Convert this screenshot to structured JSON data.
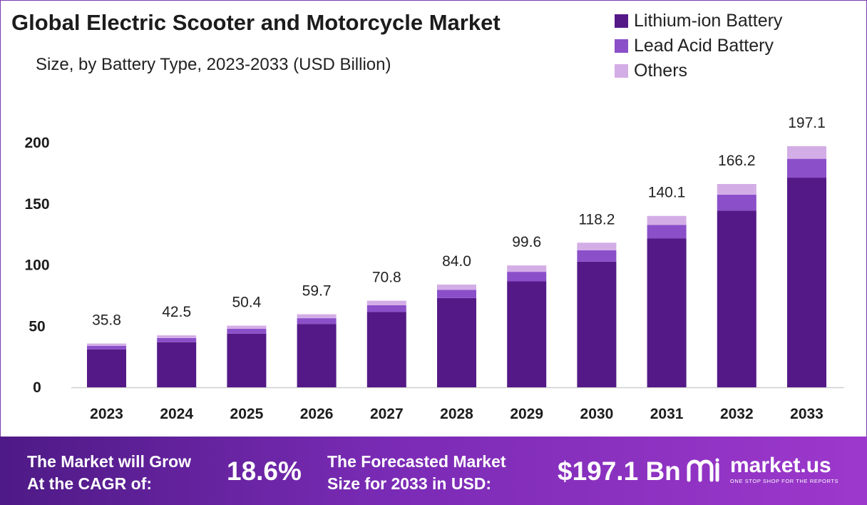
{
  "header": {
    "title": "Global Electric Scooter and Motorcycle Market",
    "subtitle": "Size, by Battery Type, 2023-2033 (USD Billion)"
  },
  "colors": {
    "lithium": "#541987",
    "lead": "#8b4fc9",
    "others": "#d3ade6",
    "frame": "#7b3bb0"
  },
  "chart_data": {
    "type": "bar",
    "stacked": true,
    "categories": [
      "2023",
      "2024",
      "2025",
      "2026",
      "2027",
      "2028",
      "2029",
      "2030",
      "2031",
      "2032",
      "2033"
    ],
    "series": [
      {
        "name": "Lithium-ion Battery",
        "values": [
          31.0,
          36.9,
          43.8,
          51.8,
          61.5,
          73.0,
          86.6,
          102.7,
          121.8,
          144.5,
          171.4
        ]
      },
      {
        "name": "Lead Acid Battery",
        "values": [
          2.9,
          3.4,
          4.0,
          4.7,
          5.6,
          6.6,
          7.8,
          9.3,
          11.0,
          13.0,
          15.4
        ]
      },
      {
        "name": "Others",
        "values": [
          1.9,
          2.2,
          2.6,
          3.2,
          3.7,
          4.4,
          5.2,
          6.2,
          7.3,
          8.7,
          10.3
        ]
      }
    ],
    "totals": [
      "35.8",
      "42.5",
      "50.4",
      "59.7",
      "70.8",
      "84.0",
      "99.6",
      "118.2",
      "140.1",
      "166.2",
      "197.1"
    ],
    "yticks": [
      "0",
      "50",
      "100",
      "150",
      "200"
    ],
    "ylim": [
      0,
      200
    ],
    "grid": false,
    "legend_position": "top-right"
  },
  "banner": {
    "cagr_text": [
      "The Market will Grow",
      "At the CAGR of:"
    ],
    "cagr_value": "18.6%",
    "forecast_text": [
      "The Forecasted Market",
      "Size for 2033 in USD:"
    ],
    "forecast_value": "$197.1 Bn",
    "logo_name": "market.us",
    "logo_tagline": "ONE STOP SHOP FOR THE REPORTS",
    "logo_icon": "market-us-logo-icon"
  }
}
